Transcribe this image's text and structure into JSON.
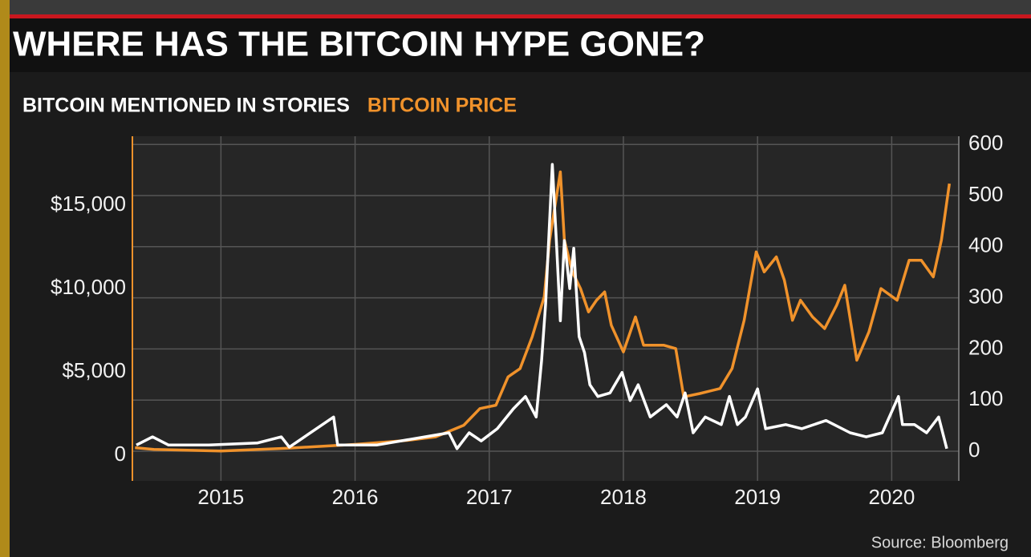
{
  "chart_data": {
    "type": "line",
    "title": "WHERE HAS THE BITCOIN HYPE GONE?",
    "source": "Source: Bloomberg",
    "xlim": [
      2014.84,
      2021.0
    ],
    "xticks": [
      {
        "value": 2015.5,
        "label": "2015"
      },
      {
        "value": 2016.5,
        "label": "2016"
      },
      {
        "value": 2017.5,
        "label": "2017"
      },
      {
        "value": 2018.5,
        "label": "2018"
      },
      {
        "value": 2019.5,
        "label": "2019"
      },
      {
        "value": 2020.5,
        "label": "2020"
      }
    ],
    "ylim": [
      -1540,
      19140
    ],
    "yticks": [
      0,
      {
        "value": 5000,
        "label": "$5,000"
      },
      {
        "value": 10000,
        "label": "$10,000"
      },
      {
        "value": 15000,
        "label": "$15,000"
      }
    ],
    "y2lim": [
      -58,
      616
    ],
    "y2ticks": [
      0,
      100,
      200,
      300,
      400,
      500,
      600
    ],
    "grid": true,
    "series": [
      {
        "name": "BITCOIN MENTIONED IN STORIES",
        "color": "#ffffff",
        "axis": "y2",
        "x": [
          2014.87,
          2014.99,
          2015.11,
          2015.41,
          2015.77,
          2015.95,
          2016.01,
          2016.34,
          2016.37,
          2016.66,
          2017.02,
          2017.2,
          2017.26,
          2017.35,
          2017.44,
          2017.56,
          2017.68,
          2017.77,
          2017.85,
          2017.89,
          2017.92,
          2017.97,
          2018.0,
          2018.03,
          2018.06,
          2018.1,
          2018.13,
          2018.17,
          2018.21,
          2018.25,
          2018.31,
          2018.4,
          2018.49,
          2018.55,
          2018.61,
          2018.7,
          2018.82,
          2018.9,
          2018.96,
          2019.02,
          2019.11,
          2019.23,
          2019.29,
          2019.35,
          2019.41,
          2019.5,
          2019.56,
          2019.71,
          2019.83,
          2020.01,
          2020.19,
          2020.31,
          2020.43,
          2020.55,
          2020.58,
          2020.67,
          2020.76,
          2020.85,
          2020.91
        ],
        "values": [
          12,
          28,
          12,
          12,
          16,
          28,
          8,
          67,
          12,
          12,
          28,
          36,
          5,
          36,
          20,
          44,
          83,
          107,
          67,
          177,
          287,
          561,
          412,
          255,
          412,
          318,
          397,
          224,
          193,
          130,
          107,
          114,
          154,
          99,
          130,
          67,
          91,
          67,
          114,
          36,
          67,
          52,
          107,
          52,
          67,
          122,
          44,
          52,
          44,
          60,
          36,
          28,
          36,
          107,
          52,
          52,
          36,
          67,
          5
        ]
      },
      {
        "name": "BITCOIN PRICE",
        "color": "#f0922b",
        "axis": "y",
        "x": [
          2014.86,
          2015.0,
          2015.5,
          2016.0,
          2016.5,
          2016.9,
          2017.1,
          2017.31,
          2017.43,
          2017.55,
          2017.64,
          2017.73,
          2017.82,
          2017.91,
          2017.95,
          2018.03,
          2018.06,
          2018.12,
          2018.18,
          2018.24,
          2018.3,
          2018.36,
          2018.41,
          2018.5,
          2018.59,
          2018.65,
          2018.8,
          2018.89,
          2018.95,
          2019.07,
          2019.22,
          2019.31,
          2019.4,
          2019.49,
          2019.55,
          2019.64,
          2019.7,
          2019.76,
          2019.82,
          2019.91,
          2020.0,
          2020.09,
          2020.15,
          2020.24,
          2020.33,
          2020.42,
          2020.54,
          2020.63,
          2020.72,
          2020.81,
          2020.87,
          2020.93
        ],
        "values": [
          450,
          350,
          250,
          420,
          650,
          900,
          1100,
          1800,
          2800,
          3000,
          4700,
          5200,
          7100,
          9500,
          12900,
          17000,
          12900,
          11000,
          10000,
          8600,
          9300,
          9800,
          7800,
          6200,
          8300,
          6600,
          6600,
          6400,
          3500,
          3700,
          4000,
          5200,
          8100,
          12200,
          11000,
          11900,
          10500,
          8100,
          9300,
          8300,
          7600,
          9000,
          10200,
          5700,
          7400,
          10000,
          9300,
          11700,
          11700,
          10700,
          12900,
          16300
        ]
      }
    ]
  }
}
